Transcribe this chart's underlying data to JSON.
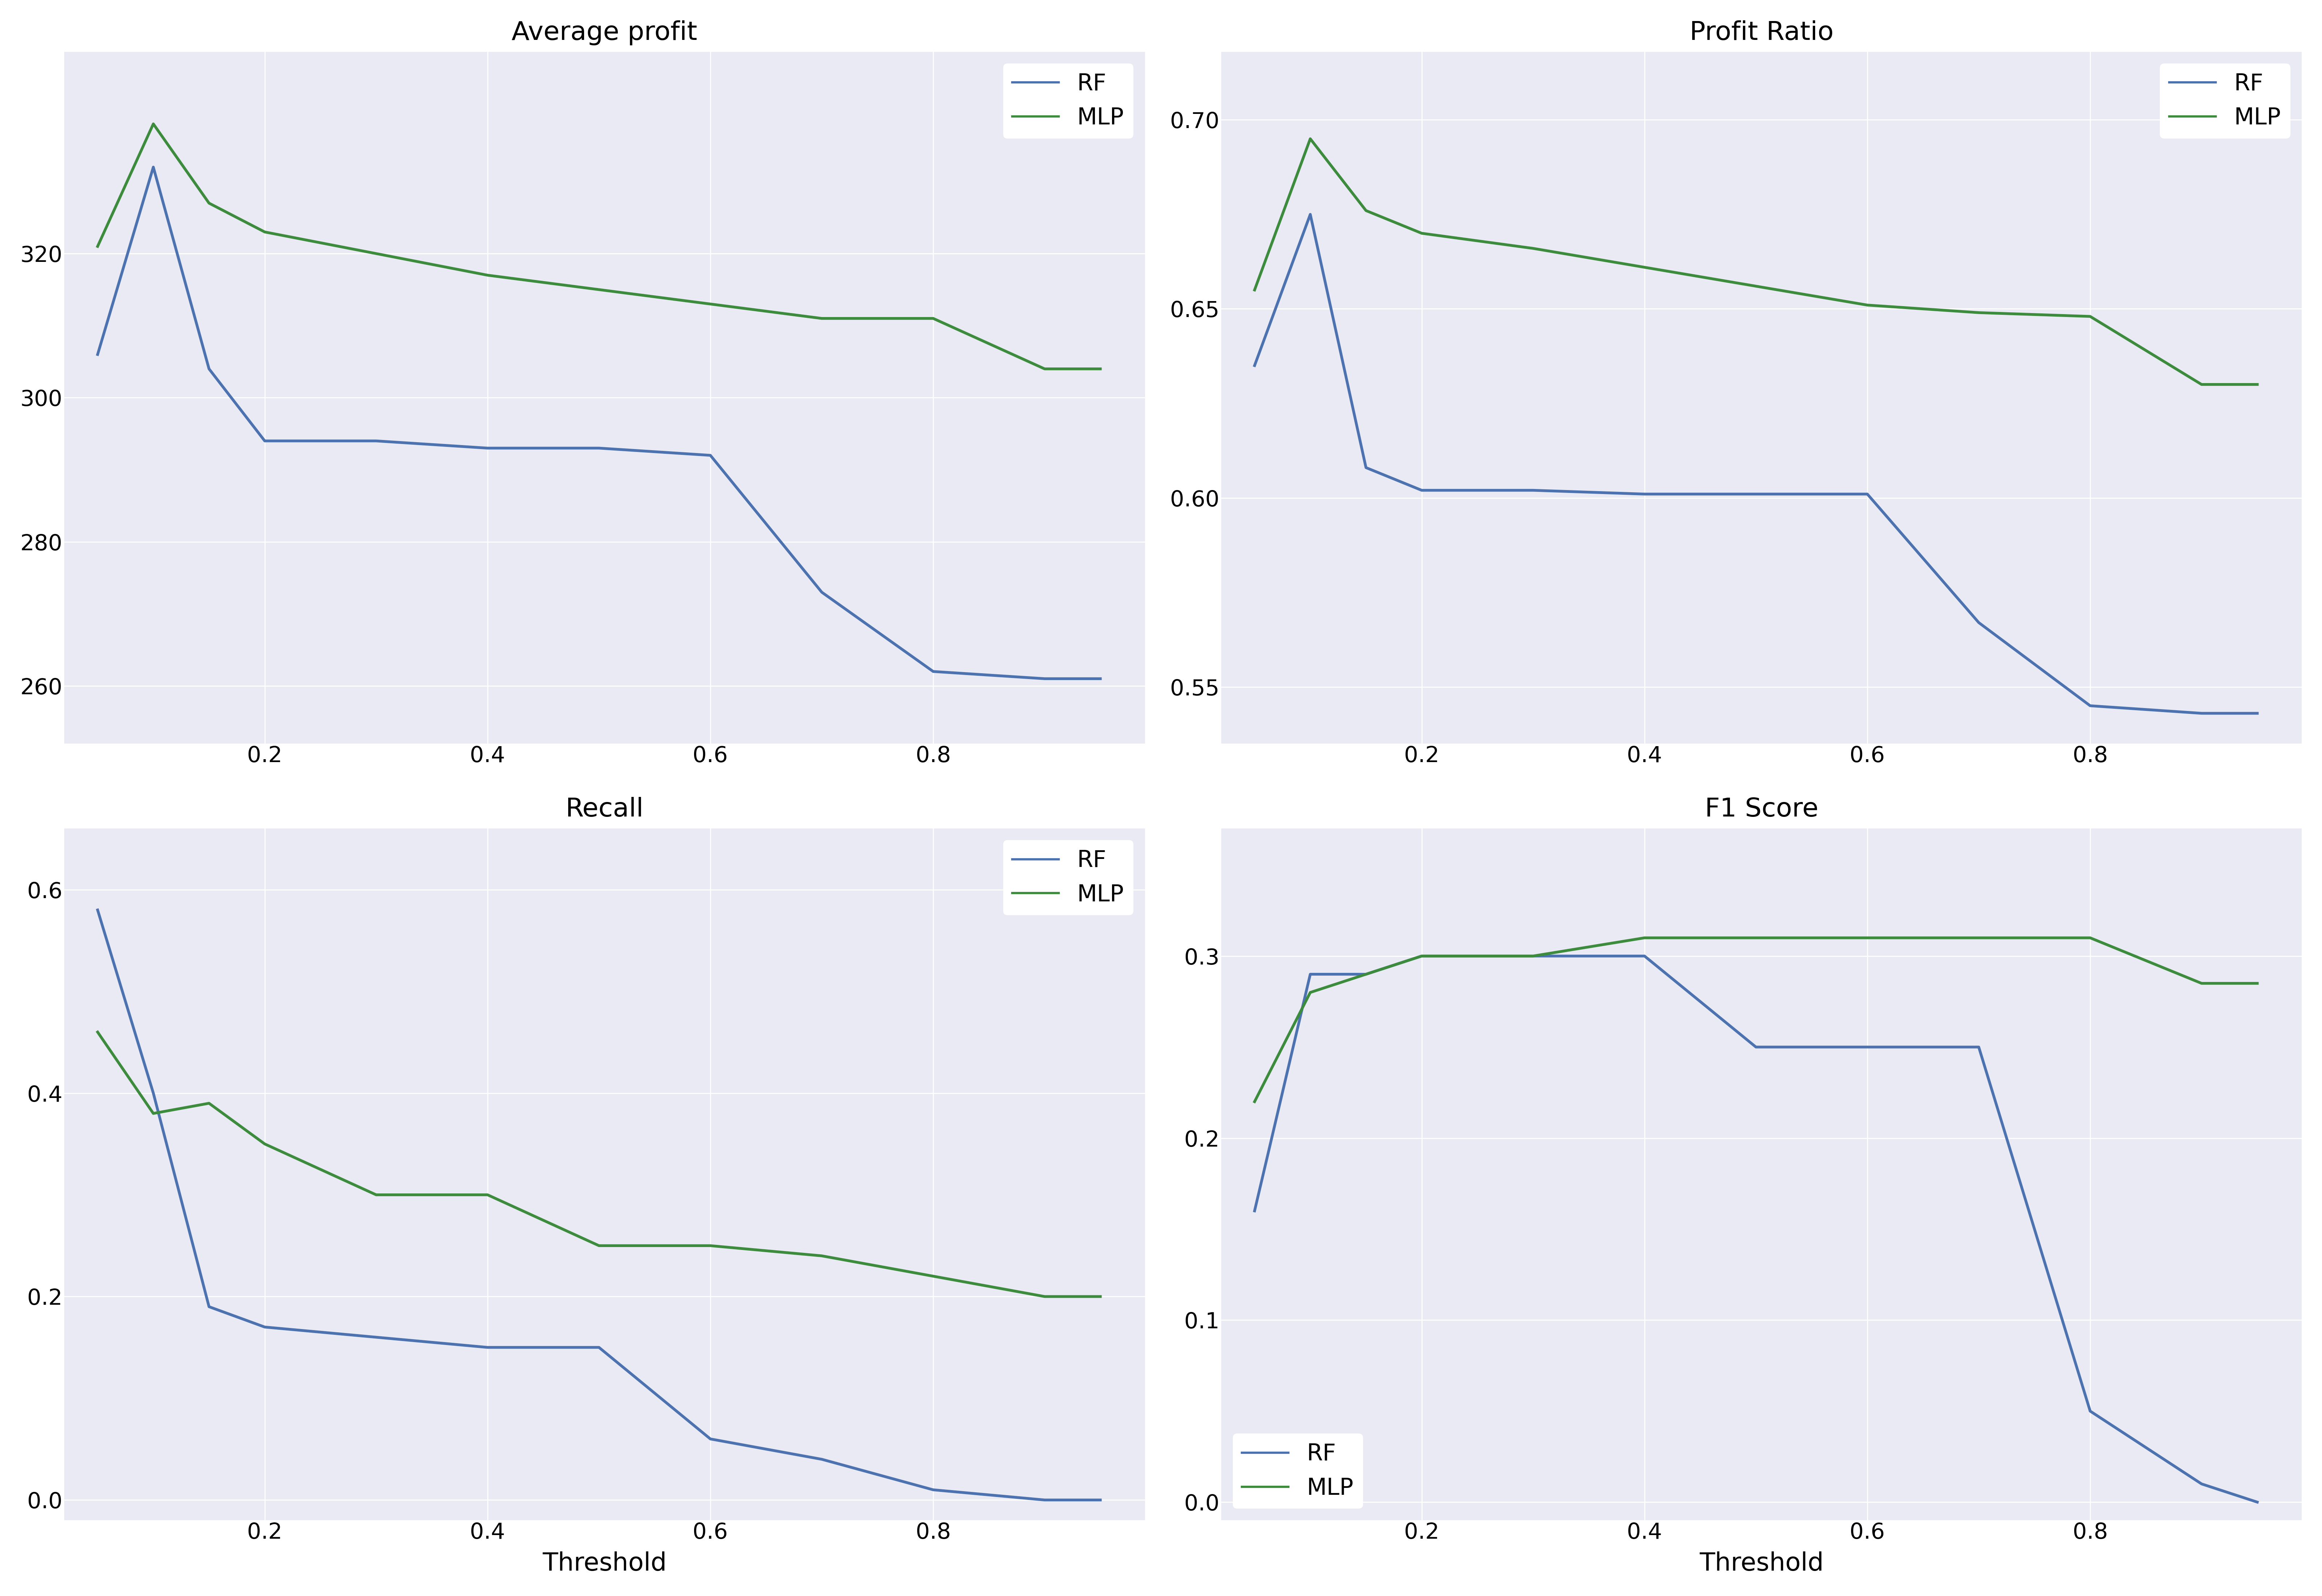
{
  "threshold": [
    0.05,
    0.1,
    0.15,
    0.2,
    0.3,
    0.4,
    0.5,
    0.6,
    0.7,
    0.8,
    0.9,
    0.95
  ],
  "avg_profit_rf": [
    306,
    332,
    304,
    294,
    294,
    293,
    293,
    292,
    273,
    262,
    261,
    261
  ],
  "avg_profit_mlp": [
    321,
    338,
    327,
    323,
    320,
    317,
    315,
    313,
    311,
    311,
    304,
    304
  ],
  "profit_ratio_rf": [
    0.635,
    0.675,
    0.608,
    0.602,
    0.602,
    0.601,
    0.601,
    0.601,
    0.567,
    0.545,
    0.543,
    0.543
  ],
  "profit_ratio_mlp": [
    0.655,
    0.695,
    0.676,
    0.67,
    0.666,
    0.661,
    0.656,
    0.651,
    0.649,
    0.648,
    0.63,
    0.63
  ],
  "recall_rf": [
    0.58,
    0.4,
    0.19,
    0.17,
    0.16,
    0.15,
    0.15,
    0.06,
    0.04,
    0.01,
    0.0,
    0.0
  ],
  "recall_mlp": [
    0.46,
    0.38,
    0.39,
    0.35,
    0.3,
    0.3,
    0.25,
    0.25,
    0.24,
    0.22,
    0.2,
    0.2
  ],
  "f1_rf": [
    0.16,
    0.29,
    0.29,
    0.3,
    0.3,
    0.3,
    0.25,
    0.25,
    0.25,
    0.05,
    0.01,
    0.0
  ],
  "f1_mlp": [
    0.22,
    0.28,
    0.29,
    0.3,
    0.3,
    0.31,
    0.31,
    0.31,
    0.31,
    0.31,
    0.285,
    0.285
  ],
  "rf_color": "#4C72B0",
  "mlp_color": "#3d8c3d",
  "bg_color": "#EAEAF4",
  "grid_color": "#FFFFFF",
  "line_width": 5.5,
  "fig_bg": "#FFFFFF",
  "titles": [
    "Average profit",
    "Profit Ratio",
    "Recall",
    "F1 Score"
  ],
  "xlabel": "Threshold",
  "legend_labels": [
    "RF",
    "MLP"
  ],
  "avg_profit_yticks": [
    260,
    280,
    300,
    320
  ],
  "avg_profit_ylim": [
    252,
    348
  ],
  "profit_ratio_yticks": [
    0.55,
    0.6,
    0.65,
    0.7
  ],
  "profit_ratio_ylim": [
    0.535,
    0.718
  ],
  "recall_yticks": [
    0.0,
    0.2,
    0.4,
    0.6
  ],
  "recall_ylim": [
    -0.02,
    0.66
  ],
  "f1_yticks": [
    0.0,
    0.1,
    0.2,
    0.3
  ],
  "f1_ylim": [
    -0.01,
    0.37
  ],
  "xlim": [
    0.02,
    0.99
  ],
  "xticks": [
    0.2,
    0.4,
    0.6,
    0.8
  ],
  "title_fontsize": 52,
  "tick_fontsize": 44,
  "legend_fontsize": 46,
  "xlabel_fontsize": 50,
  "legend_linewidth": 4.5
}
